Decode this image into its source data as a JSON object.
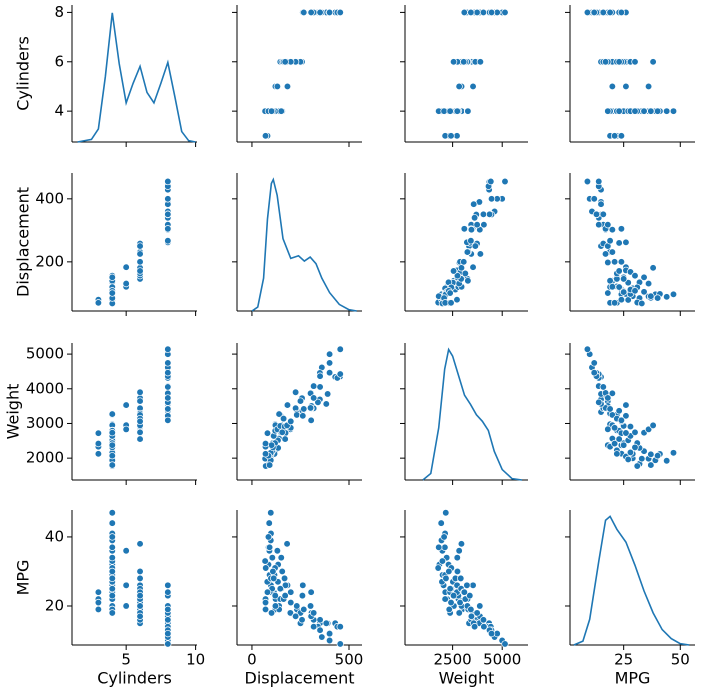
{
  "chart_data": {
    "type": "pairplot",
    "color": "#1f77b4",
    "variables": [
      {
        "name": "Cylinders",
        "values": [
          4,
          4,
          4,
          4,
          4,
          4,
          4,
          4,
          4,
          4,
          4,
          4,
          4,
          4,
          4,
          4,
          4,
          4,
          4,
          4,
          4,
          4,
          4,
          4,
          4,
          4,
          4,
          4,
          4,
          4,
          4,
          4,
          4,
          4,
          4,
          4,
          3,
          3,
          3,
          3,
          5,
          5,
          5,
          6,
          6,
          6,
          6,
          6,
          6,
          6,
          6,
          6,
          6,
          6,
          6,
          6,
          6,
          6,
          6,
          6,
          8,
          8,
          8,
          8,
          8,
          8,
          8,
          8,
          8,
          8,
          8,
          8,
          8,
          8,
          8,
          8,
          8,
          8,
          8,
          8,
          8,
          8,
          8,
          8,
          8,
          8,
          8,
          8
        ],
        "xlim": [
          1.1,
          10.1
        ],
        "ylim": [
          2.75,
          8.3
        ],
        "xticks": [
          5,
          10
        ],
        "yticks": [
          4,
          6,
          8
        ],
        "kde": {
          "x": [
            1.5,
            2.5,
            3,
            3.5,
            4,
            4.5,
            5,
            5.5,
            6,
            6.5,
            7,
            7.5,
            8,
            8.5,
            9,
            9.5,
            10
          ],
          "density": [
            0,
            0.02,
            0.1,
            0.5,
            0.99,
            0.6,
            0.3,
            0.45,
            0.58,
            0.38,
            0.3,
            0.45,
            0.61,
            0.35,
            0.08,
            0.01,
            0
          ]
        }
      },
      {
        "name": "Displacement",
        "values": [
          97,
          98,
          85,
          90,
          122,
          140,
          113,
          107,
          120,
          151,
          71,
          91,
          79,
          104,
          116,
          98,
          89,
          86,
          105,
          134,
          156,
          135,
          146,
          68,
          97,
          91,
          98,
          112,
          119,
          140,
          120,
          97,
          108,
          151,
          85,
          101,
          70,
          70,
          80,
          70,
          121,
          183,
          131,
          198,
          250,
          225,
          232,
          258,
          200,
          231,
          173,
          146,
          168,
          181,
          250,
          156,
          163,
          225,
          200,
          171,
          307,
          350,
          318,
          304,
          302,
          429,
          454,
          440,
          455,
          390,
          383,
          340,
          400,
          360,
          455,
          305,
          260,
          318,
          350,
          400,
          302,
          262,
          351,
          318,
          267,
          305,
          400,
          351
        ],
        "xlim": [
          -77,
          567
        ],
        "ylim": [
          44,
          482
        ],
        "xticks": [
          0,
          500
        ],
        "yticks": [
          200,
          400
        ],
        "kde": {
          "x": [
            0,
            30,
            60,
            80,
            100,
            110,
            130,
            160,
            200,
            240,
            270,
            300,
            330,
            360,
            400,
            450,
            500,
            540
          ],
          "density": [
            0,
            0.03,
            0.25,
            0.7,
            0.97,
            1.0,
            0.88,
            0.55,
            0.4,
            0.42,
            0.38,
            0.41,
            0.36,
            0.25,
            0.14,
            0.05,
            0.01,
            0
          ]
        }
      },
      {
        "name": "Weight",
        "values": [
          2130,
          2045,
          1835,
          1985,
          2226,
          2565,
          2372,
          2430,
          2979,
          2950,
          1773,
          1995,
          1963,
          2375,
          2123,
          2164,
          1925,
          2110,
          2200,
          2515,
          2800,
          2295,
          3250,
          1985,
          1940,
          1800,
          2120,
          2640,
          2434,
          3270,
          2790,
          2155,
          2310,
          2735,
          2070,
          2375,
          2330,
          2124,
          2720,
          2420,
          2950,
          3530,
          2830,
          2833,
          3329,
          3439,
          3288,
          3730,
          2875,
          3245,
          2725,
          2930,
          2910,
          2945,
          3645,
          2745,
          3140,
          3900,
          3060,
          2550,
          3504,
          3693,
          3436,
          3433,
          3449,
          4341,
          4354,
          4312,
          4425,
          3850,
          3563,
          3609,
          4997,
          4615,
          5140,
          3880,
          3365,
          4077,
          4456,
          4746,
          3870,
          3221,
          4363,
          3735,
          3420,
          3090,
          4464,
          4054
        ],
        "xlim": [
          100,
          6300
        ],
        "ylim": [
          1370,
          5320
        ],
        "xticks": [
          2500,
          5000
        ],
        "yticks": [
          2000,
          3000,
          4000,
          5000
        ],
        "kde": {
          "x": [
            1000,
            1400,
            1800,
            2100,
            2300,
            2500,
            2800,
            3100,
            3400,
            3700,
            4000,
            4300,
            4600,
            5000,
            5500,
            6000
          ],
          "density": [
            0,
            0.05,
            0.4,
            0.85,
            1.0,
            0.95,
            0.8,
            0.65,
            0.58,
            0.5,
            0.45,
            0.38,
            0.22,
            0.08,
            0.01,
            0
          ]
        }
      },
      {
        "name": "MPG",
        "values": [
          24,
          26,
          32,
          36,
          22,
          20,
          24,
          25,
          19,
          25,
          31,
          29,
          27,
          25,
          29,
          28,
          44,
          37,
          34,
          27,
          22,
          32,
          22,
          33,
          39,
          37,
          41,
          28,
          31,
          19,
          23,
          47,
          30,
          34,
          40,
          18,
          19,
          22,
          24,
          21,
          20,
          26,
          36,
          18,
          15,
          17,
          19,
          16,
          21,
          20,
          26,
          25,
          28,
          38,
          18,
          30,
          22,
          17,
          24,
          23,
          18,
          15,
          16,
          17,
          17,
          15,
          14,
          14,
          14,
          15,
          15,
          14,
          10,
          11,
          9,
          17,
          23,
          14,
          13,
          12,
          20,
          26,
          13,
          18,
          19,
          24,
          12,
          16
        ],
        "xlim": [
          1.3,
          56.5
        ],
        "ylim": [
          8.7,
          47.8
        ],
        "xticks": [
          25,
          50
        ],
        "yticks": [
          20,
          40
        ],
        "kde": {
          "x": [
            3,
            7,
            10,
            14,
            17,
            19,
            22,
            26,
            30,
            34,
            38,
            42,
            46,
            50,
            54
          ],
          "density": [
            0,
            0.03,
            0.2,
            0.65,
            0.97,
            1.0,
            0.9,
            0.8,
            0.62,
            0.42,
            0.25,
            0.12,
            0.05,
            0.01,
            0
          ]
        }
      }
    ]
  }
}
